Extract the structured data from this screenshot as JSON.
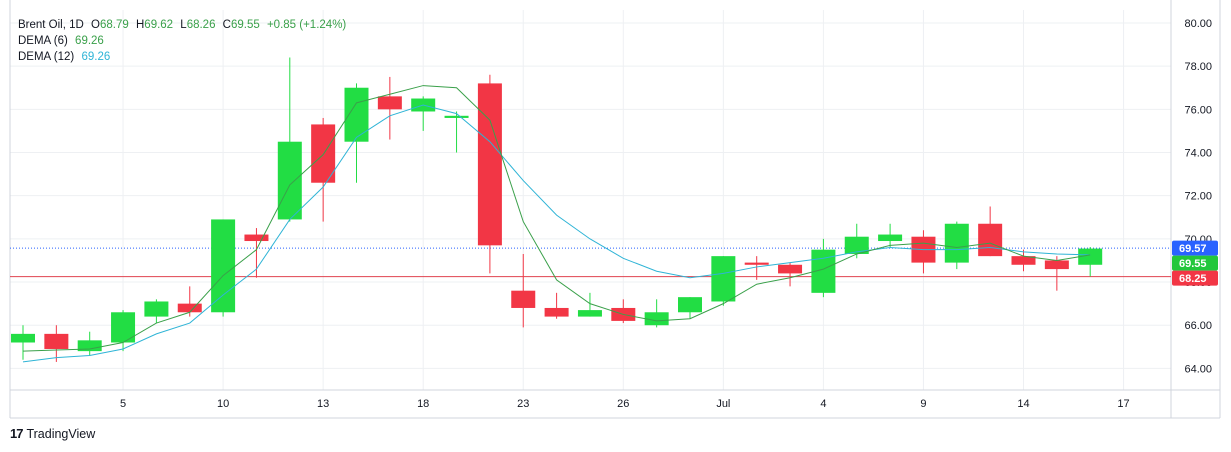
{
  "header": {
    "symbol": "Brent Oil",
    "interval": "1D",
    "ohlc_labels": {
      "o": "O",
      "h": "H",
      "l": "L",
      "c": "C"
    },
    "open": "68.79",
    "high": "69.62",
    "low": "68.26",
    "close": "69.55",
    "change": "+0.85 (+1.24%)"
  },
  "indicators": [
    {
      "label": "DEMA (6)",
      "value": "69.26",
      "color": "#3aa04a"
    },
    {
      "label": "DEMA (12)",
      "value": "69.26",
      "color": "#2fb4d6"
    }
  ],
  "branding": {
    "logo": "17",
    "name": "TradingView"
  },
  "colors": {
    "up": "#22dd44",
    "down": "#f23645",
    "dema6": "#3aa04a",
    "dema12": "#2fb4d6",
    "grid": "#eef0f3",
    "blue_tag": "#2962ff",
    "red_line": "#e0434f"
  },
  "chart_data": {
    "type": "candlestick",
    "ylim": [
      63.0,
      80.6
    ],
    "y_ticks": [
      "80.00",
      "78.00",
      "76.00",
      "74.00",
      "72.00",
      "70.00",
      "68.00",
      "66.00",
      "64.00"
    ],
    "x_ticks": [
      {
        "index": 3,
        "label": "5"
      },
      {
        "index": 6,
        "label": "10"
      },
      {
        "index": 9,
        "label": "13"
      },
      {
        "index": 12,
        "label": "18"
      },
      {
        "index": 15,
        "label": "23"
      },
      {
        "index": 18,
        "label": "26"
      },
      {
        "index": 21,
        "label": "Jul"
      },
      {
        "index": 24,
        "label": "4"
      },
      {
        "index": 27,
        "label": "9"
      },
      {
        "index": 30,
        "label": "14"
      },
      {
        "index": 33,
        "label": "17"
      }
    ],
    "candles": [
      {
        "o": 65.2,
        "h": 66.0,
        "l": 64.4,
        "c": 65.6
      },
      {
        "o": 65.6,
        "h": 66.0,
        "l": 64.3,
        "c": 64.9
      },
      {
        "o": 64.8,
        "h": 65.7,
        "l": 64.6,
        "c": 65.3
      },
      {
        "o": 65.2,
        "h": 66.7,
        "l": 64.8,
        "c": 66.6
      },
      {
        "o": 66.4,
        "h": 67.2,
        "l": 66.1,
        "c": 67.1
      },
      {
        "o": 67.0,
        "h": 67.8,
        "l": 66.4,
        "c": 66.6
      },
      {
        "o": 66.6,
        "h": 70.9,
        "l": 66.4,
        "c": 70.9
      },
      {
        "o": 70.2,
        "h": 70.5,
        "l": 68.2,
        "c": 69.9
      },
      {
        "o": 70.9,
        "h": 78.4,
        "l": 70.8,
        "c": 74.5
      },
      {
        "o": 75.3,
        "h": 75.6,
        "l": 70.8,
        "c": 72.6
      },
      {
        "o": 74.5,
        "h": 77.2,
        "l": 72.6,
        "c": 77.0
      },
      {
        "o": 76.6,
        "h": 77.5,
        "l": 74.6,
        "c": 76.0
      },
      {
        "o": 75.9,
        "h": 76.6,
        "l": 75.0,
        "c": 76.5
      },
      {
        "o": 75.6,
        "h": 75.9,
        "l": 74.0,
        "c": 75.7
      },
      {
        "o": 77.2,
        "h": 77.6,
        "l": 68.4,
        "c": 69.7
      },
      {
        "o": 67.6,
        "h": 69.3,
        "l": 65.9,
        "c": 66.8
      },
      {
        "o": 66.8,
        "h": 67.5,
        "l": 66.3,
        "c": 66.4
      },
      {
        "o": 66.4,
        "h": 67.5,
        "l": 66.4,
        "c": 66.7
      },
      {
        "o": 66.8,
        "h": 67.2,
        "l": 66.1,
        "c": 66.2
      },
      {
        "o": 66.0,
        "h": 67.2,
        "l": 65.9,
        "c": 66.6
      },
      {
        "o": 66.6,
        "h": 67.3,
        "l": 66.3,
        "c": 67.3
      },
      {
        "o": 67.1,
        "h": 69.2,
        "l": 66.9,
        "c": 69.2
      },
      {
        "o": 68.9,
        "h": 69.2,
        "l": 68.1,
        "c": 68.8
      },
      {
        "o": 68.8,
        "h": 68.9,
        "l": 67.8,
        "c": 68.4
      },
      {
        "o": 67.5,
        "h": 70.0,
        "l": 67.3,
        "c": 69.5
      },
      {
        "o": 69.3,
        "h": 70.7,
        "l": 69.1,
        "c": 70.1
      },
      {
        "o": 69.9,
        "h": 70.7,
        "l": 69.6,
        "c": 70.2
      },
      {
        "o": 70.1,
        "h": 70.4,
        "l": 68.4,
        "c": 68.9
      },
      {
        "o": 68.9,
        "h": 70.8,
        "l": 68.6,
        "c": 70.7
      },
      {
        "o": 70.7,
        "h": 71.5,
        "l": 69.2,
        "c": 69.2
      },
      {
        "o": 69.2,
        "h": 69.5,
        "l": 68.5,
        "c": 68.8
      },
      {
        "o": 69.0,
        "h": 69.2,
        "l": 67.6,
        "c": 68.6
      },
      {
        "o": 68.8,
        "h": 69.62,
        "l": 68.26,
        "c": 69.55
      }
    ],
    "dema6": [
      64.8,
      64.85,
      64.9,
      65.2,
      66.1,
      66.6,
      68.3,
      69.5,
      72.5,
      73.9,
      76.3,
      76.7,
      77.1,
      77.0,
      75.5,
      70.8,
      68.1,
      67.0,
      66.5,
      66.2,
      66.3,
      67.0,
      67.9,
      68.2,
      68.6,
      69.3,
      69.7,
      69.8,
      69.6,
      69.8,
      69.2,
      69.0,
      69.26
    ],
    "dema12": [
      64.3,
      64.5,
      64.6,
      64.9,
      65.6,
      66.1,
      67.4,
      68.6,
      70.9,
      72.4,
      74.7,
      75.7,
      76.2,
      75.8,
      74.5,
      72.7,
      71.1,
      70.0,
      69.1,
      68.5,
      68.2,
      68.4,
      68.7,
      68.9,
      69.1,
      69.4,
      69.6,
      69.5,
      69.5,
      69.6,
      69.4,
      69.3,
      69.26
    ],
    "price_lines": [
      {
        "value": 69.57,
        "label": "69.57",
        "color": "#2962ff",
        "style": "dotted"
      },
      {
        "value": 68.25,
        "label": "68.25",
        "color": "#e0434f",
        "style": "solid"
      }
    ],
    "price_tags": [
      {
        "value": 69.57,
        "label": "69.57",
        "bg": "#2962ff",
        "fg": "#ffffff"
      },
      {
        "value": 69.55,
        "label": "69.55",
        "bg": "#22c73b",
        "fg": "#ffffff"
      },
      {
        "value": 68.25,
        "label": "68.25",
        "bg": "#f23645",
        "fg": "#ffffff"
      }
    ]
  }
}
